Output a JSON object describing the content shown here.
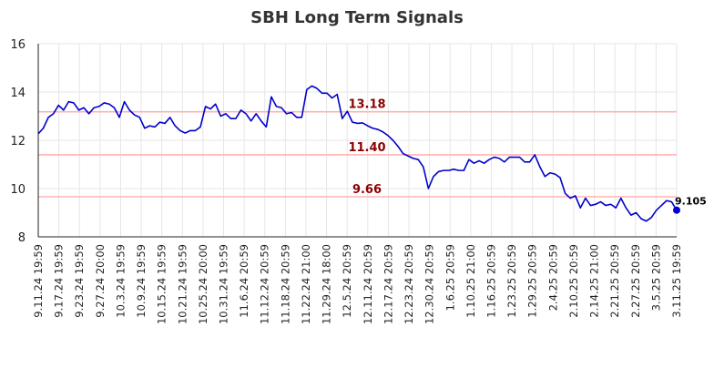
{
  "chart_data": {
    "type": "line",
    "title": "SBH Long Term Signals",
    "xlabel": "",
    "ylabel": "",
    "ylim": [
      8,
      16
    ],
    "yticks": [
      "8",
      "10",
      "12",
      "14",
      "16"
    ],
    "grid": true,
    "legend": "none",
    "line_color": "#0000cc",
    "level_color": "#ffb3b3",
    "level_label_color": "#8b0000",
    "x_tick_labels": [
      "9.11.24 19:59",
      "9.17.24 19:59",
      "9.23.24 19:59",
      "9.27.24 20:00",
      "10.3.24 19:59",
      "10.9.24 19:59",
      "10.15.24 19:59",
      "10.21.24 19:59",
      "10.25.24 20:00",
      "10.31.24 19:59",
      "11.6.24 20:59",
      "11.12.24 20:59",
      "11.18.24 20:59",
      "11.22.24 21:00",
      "11.29.24 18:00",
      "12.5.24 20:59",
      "12.11.24 20:59",
      "12.17.24 20:59",
      "12.23.24 20:59",
      "12.30.24 20:59",
      "1.6.25 20:59",
      "1.10.25 21:00",
      "1.16.25 20:59",
      "1.23.25 20:59",
      "1.29.25 20:59",
      "2.4.25 20:59",
      "2.10.25 20:59",
      "2.14.25 21:00",
      "2.21.25 20:59",
      "2.27.25 20:59",
      "3.5.25 20:59",
      "3.11.25 19:59"
    ],
    "levels": [
      {
        "value": 13.18,
        "label": "13.18"
      },
      {
        "value": 11.4,
        "label": "11.40"
      },
      {
        "value": 9.66,
        "label": "9.66"
      }
    ],
    "last_value_label": "9.105",
    "values": [
      12.27,
      12.5,
      12.95,
      13.1,
      13.45,
      13.25,
      13.6,
      13.55,
      13.25,
      13.35,
      13.1,
      13.35,
      13.4,
      13.55,
      13.5,
      13.35,
      12.95,
      13.6,
      13.25,
      13.05,
      12.95,
      12.5,
      12.6,
      12.55,
      12.75,
      12.7,
      12.95,
      12.6,
      12.4,
      12.3,
      12.4,
      12.4,
      12.55,
      13.4,
      13.3,
      13.5,
      13.0,
      13.1,
      12.9,
      12.9,
      13.25,
      13.1,
      12.8,
      13.1,
      12.8,
      12.55,
      13.8,
      13.4,
      13.35,
      13.1,
      13.15,
      12.95,
      12.95,
      14.1,
      14.25,
      14.15,
      13.95,
      13.95,
      13.75,
      13.9,
      12.9,
      13.2,
      12.75,
      12.7,
      12.72,
      12.6,
      12.5,
      12.45,
      12.35,
      12.2,
      12.0,
      11.75,
      11.45,
      11.35,
      11.25,
      11.2,
      10.9,
      10.0,
      10.5,
      10.7,
      10.75,
      10.75,
      10.8,
      10.75,
      10.75,
      11.2,
      11.05,
      11.15,
      11.05,
      11.2,
      11.3,
      11.25,
      11.1,
      11.3,
      11.3,
      11.3,
      11.1,
      11.1,
      11.4,
      10.9,
      10.5,
      10.65,
      10.6,
      10.45,
      9.8,
      9.6,
      9.7,
      9.2,
      9.6,
      9.3,
      9.35,
      9.45,
      9.3,
      9.35,
      9.2,
      9.6,
      9.2,
      8.9,
      9.0,
      8.75,
      8.65,
      8.8,
      9.1,
      9.3,
      9.5,
      9.45,
      9.105
    ]
  }
}
